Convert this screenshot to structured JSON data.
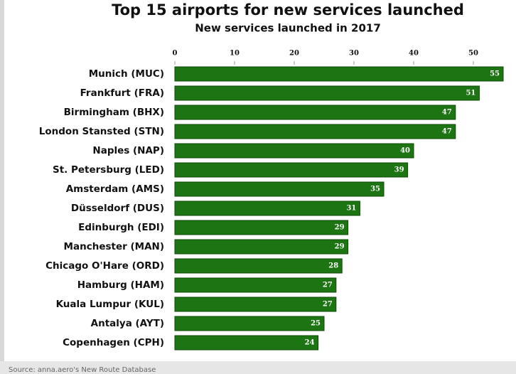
{
  "chart_data": {
    "type": "bar",
    "orientation": "horizontal",
    "title": "Top 15 airports for new services launched",
    "subtitle": "New services launched in 2017",
    "categories": [
      "Munich (MUC)",
      "Frankfurt (FRA)",
      "Birmingham (BHX)",
      "London Stansted (STN)",
      "Naples (NAP)",
      "St. Petersburg (LED)",
      "Amsterdam (AMS)",
      "Düsseldorf (DUS)",
      "Edinburgh (EDI)",
      "Manchester (MAN)",
      "Chicago O'Hare (ORD)",
      "Hamburg (HAM)",
      "Kuala Lumpur (KUL)",
      "Antalya (AYT)",
      "Copenhagen (CPH)"
    ],
    "values": [
      55,
      51,
      47,
      47,
      40,
      39,
      35,
      31,
      29,
      29,
      28,
      27,
      27,
      25,
      24
    ],
    "color": "#1d7412",
    "xlim": [
      0,
      55
    ],
    "xticks": [
      0,
      10,
      20,
      30,
      40,
      50
    ],
    "source": "Source: anna.aero's New Route Database"
  }
}
